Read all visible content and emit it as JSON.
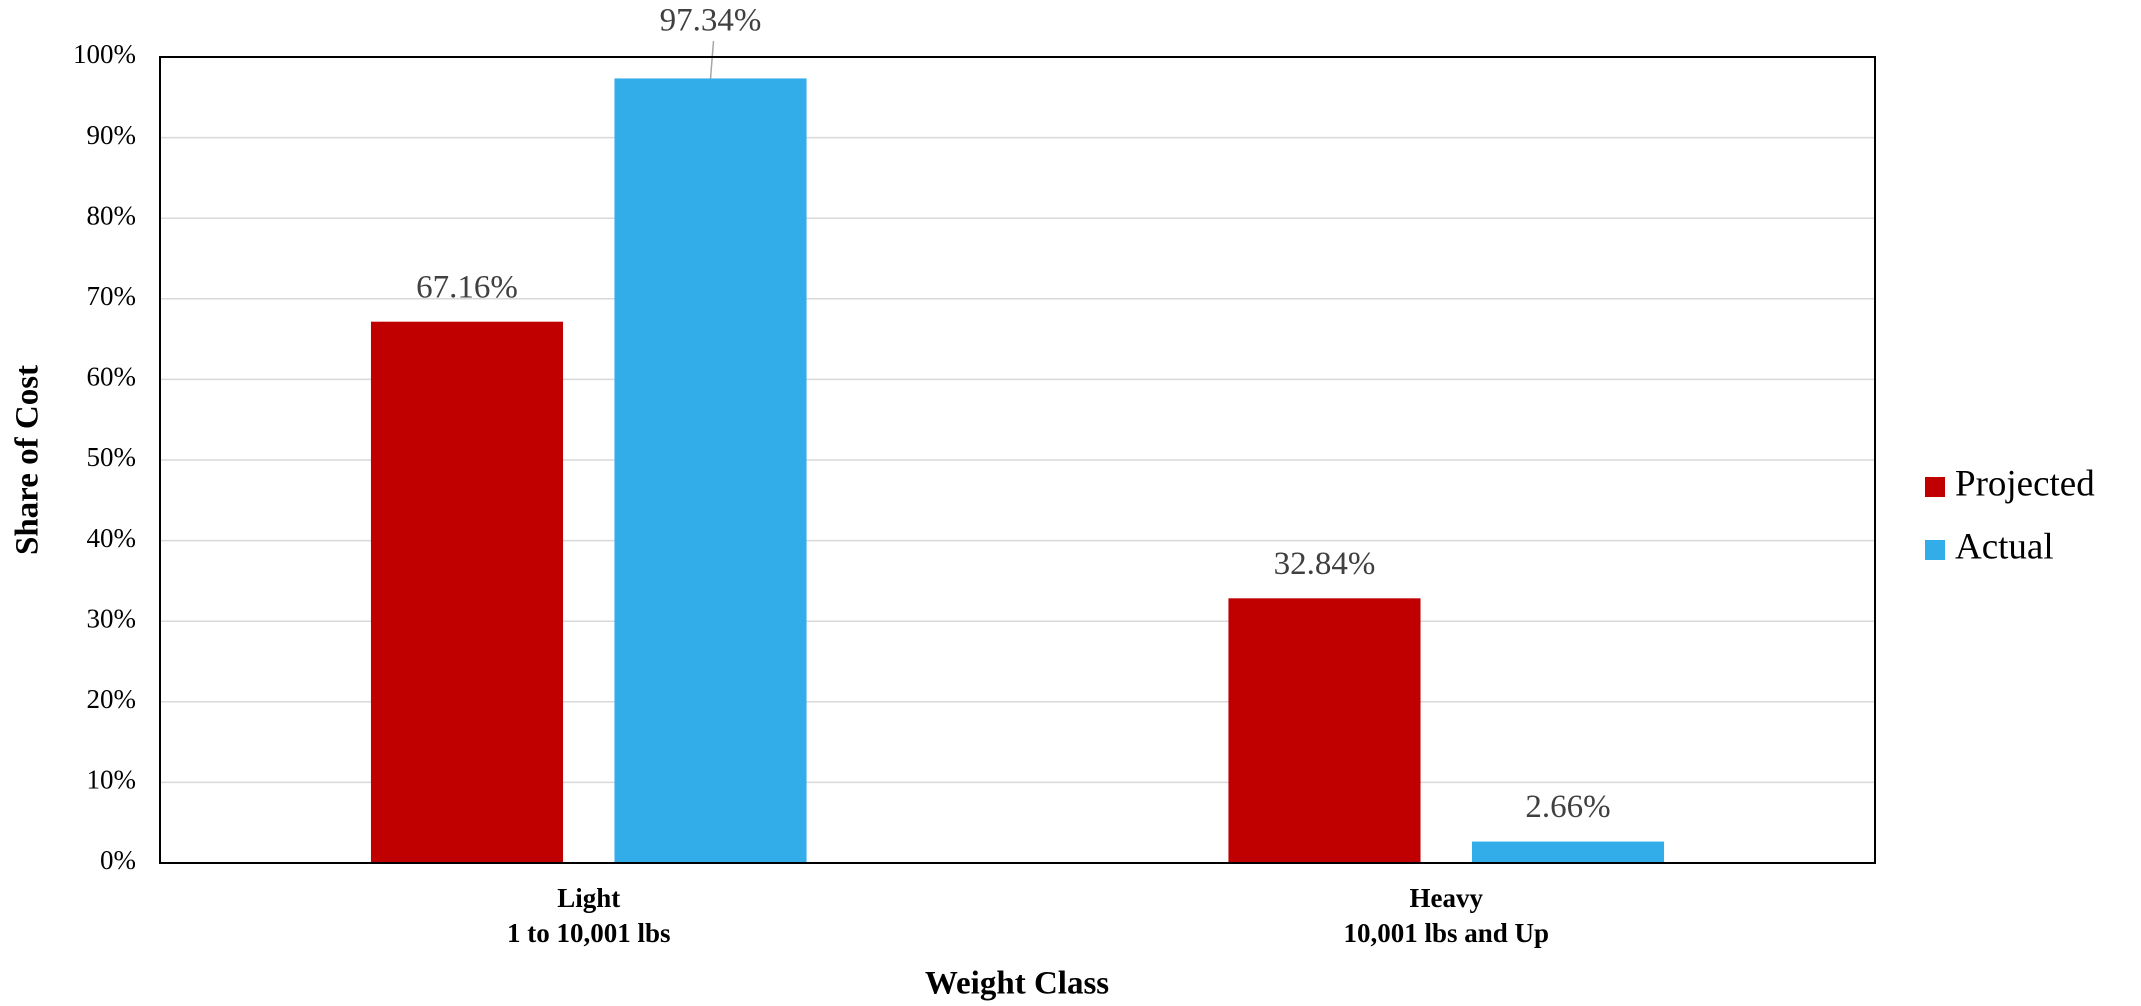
{
  "chart_data": {
    "type": "bar",
    "x_label": "Weight Class",
    "y_label": "Share of Cost",
    "categories": [
      "Light\n1 to 10,001 lbs",
      "Heavy\n10,001 lbs and Up"
    ],
    "series": [
      {
        "name": "Projected",
        "color": "#c00000",
        "values": [
          67.16,
          32.84
        ],
        "value_labels": [
          "67.16%",
          "32.84%"
        ]
      },
      {
        "name": "Actual",
        "color": "#33acea",
        "values": [
          97.34,
          2.66
        ],
        "value_labels": [
          "97.34%",
          "2.66%"
        ]
      }
    ],
    "ylim": [
      0,
      100
    ],
    "yticks": [
      {
        "value": 0,
        "label": "0%"
      },
      {
        "value": 10,
        "label": "10%"
      },
      {
        "value": 20,
        "label": "20%"
      },
      {
        "value": 30,
        "label": "30%"
      },
      {
        "value": 40,
        "label": "40%"
      },
      {
        "value": 50,
        "label": "50%"
      },
      {
        "value": 60,
        "label": "60%"
      },
      {
        "value": 70,
        "label": "70%"
      },
      {
        "value": 80,
        "label": "80%"
      },
      {
        "value": 90,
        "label": "90%"
      },
      {
        "value": 100,
        "label": "100%"
      }
    ],
    "grid": true,
    "legend": "right"
  }
}
